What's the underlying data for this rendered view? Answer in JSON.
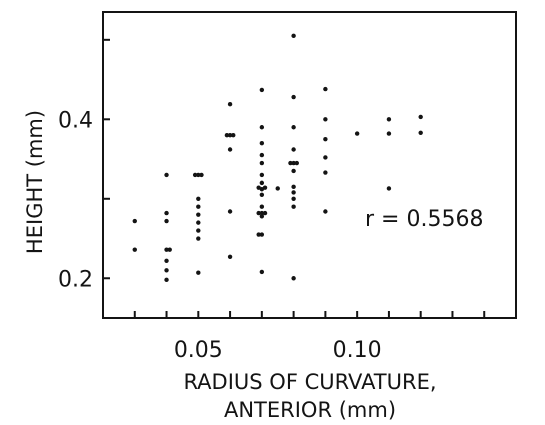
{
  "chart_data": {
    "type": "scatter",
    "title": "",
    "xlabel_lines": [
      "RADIUS OF CURVATURE,",
      "ANTERIOR (mm)"
    ],
    "ylabel": "HEIGHT (mm)",
    "xlim": [
      0.02,
      0.15
    ],
    "ylim": [
      0.15,
      0.535
    ],
    "x_ticks": [
      0.05,
      0.1
    ],
    "x_tick_labels": [
      "0.05",
      "0.10"
    ],
    "x_minor_ticks": [
      0.03,
      0.04,
      0.05,
      0.06,
      0.07,
      0.08,
      0.09,
      0.1,
      0.11,
      0.12,
      0.13,
      0.14
    ],
    "y_ticks": [
      0.2,
      0.4
    ],
    "y_tick_labels": [
      "0.2",
      "0.4"
    ],
    "y_minor_ticks": [
      0.2,
      0.3,
      0.4,
      0.5
    ],
    "grid": false,
    "annotation": "r = 0.5568",
    "point_color": "#141414",
    "points": [
      [
        0.03,
        0.272
      ],
      [
        0.03,
        0.236
      ],
      [
        0.04,
        0.33
      ],
      [
        0.04,
        0.282
      ],
      [
        0.04,
        0.272
      ],
      [
        0.04,
        0.236
      ],
      [
        0.04,
        0.222
      ],
      [
        0.04,
        0.21
      ],
      [
        0.04,
        0.198
      ],
      [
        0.041,
        0.236
      ],
      [
        0.05,
        0.33
      ],
      [
        0.05,
        0.3
      ],
      [
        0.05,
        0.29
      ],
      [
        0.05,
        0.28
      ],
      [
        0.05,
        0.27
      ],
      [
        0.05,
        0.26
      ],
      [
        0.05,
        0.25
      ],
      [
        0.05,
        0.207
      ],
      [
        0.051,
        0.33
      ],
      [
        0.049,
        0.33
      ],
      [
        0.06,
        0.419
      ],
      [
        0.06,
        0.38
      ],
      [
        0.06,
        0.362
      ],
      [
        0.06,
        0.284
      ],
      [
        0.06,
        0.227
      ],
      [
        0.061,
        0.38
      ],
      [
        0.059,
        0.38
      ],
      [
        0.07,
        0.437
      ],
      [
        0.07,
        0.39
      ],
      [
        0.07,
        0.37
      ],
      [
        0.07,
        0.355
      ],
      [
        0.07,
        0.345
      ],
      [
        0.07,
        0.33
      ],
      [
        0.07,
        0.32
      ],
      [
        0.07,
        0.312
      ],
      [
        0.07,
        0.305
      ],
      [
        0.07,
        0.29
      ],
      [
        0.07,
        0.282
      ],
      [
        0.07,
        0.278
      ],
      [
        0.07,
        0.255
      ],
      [
        0.07,
        0.208
      ],
      [
        0.069,
        0.314
      ],
      [
        0.071,
        0.314
      ],
      [
        0.069,
        0.282
      ],
      [
        0.071,
        0.282
      ],
      [
        0.069,
        0.255
      ],
      [
        0.075,
        0.313
      ],
      [
        0.08,
        0.505
      ],
      [
        0.08,
        0.428
      ],
      [
        0.08,
        0.39
      ],
      [
        0.08,
        0.362
      ],
      [
        0.08,
        0.345
      ],
      [
        0.08,
        0.335
      ],
      [
        0.08,
        0.315
      ],
      [
        0.08,
        0.308
      ],
      [
        0.08,
        0.3
      ],
      [
        0.08,
        0.29
      ],
      [
        0.08,
        0.2
      ],
      [
        0.081,
        0.345
      ],
      [
        0.079,
        0.345
      ],
      [
        0.09,
        0.438
      ],
      [
        0.09,
        0.4
      ],
      [
        0.09,
        0.375
      ],
      [
        0.09,
        0.352
      ],
      [
        0.09,
        0.333
      ],
      [
        0.09,
        0.284
      ],
      [
        0.1,
        0.382
      ],
      [
        0.11,
        0.4
      ],
      [
        0.11,
        0.382
      ],
      [
        0.11,
        0.313
      ],
      [
        0.12,
        0.403
      ],
      [
        0.12,
        0.383
      ]
    ]
  }
}
